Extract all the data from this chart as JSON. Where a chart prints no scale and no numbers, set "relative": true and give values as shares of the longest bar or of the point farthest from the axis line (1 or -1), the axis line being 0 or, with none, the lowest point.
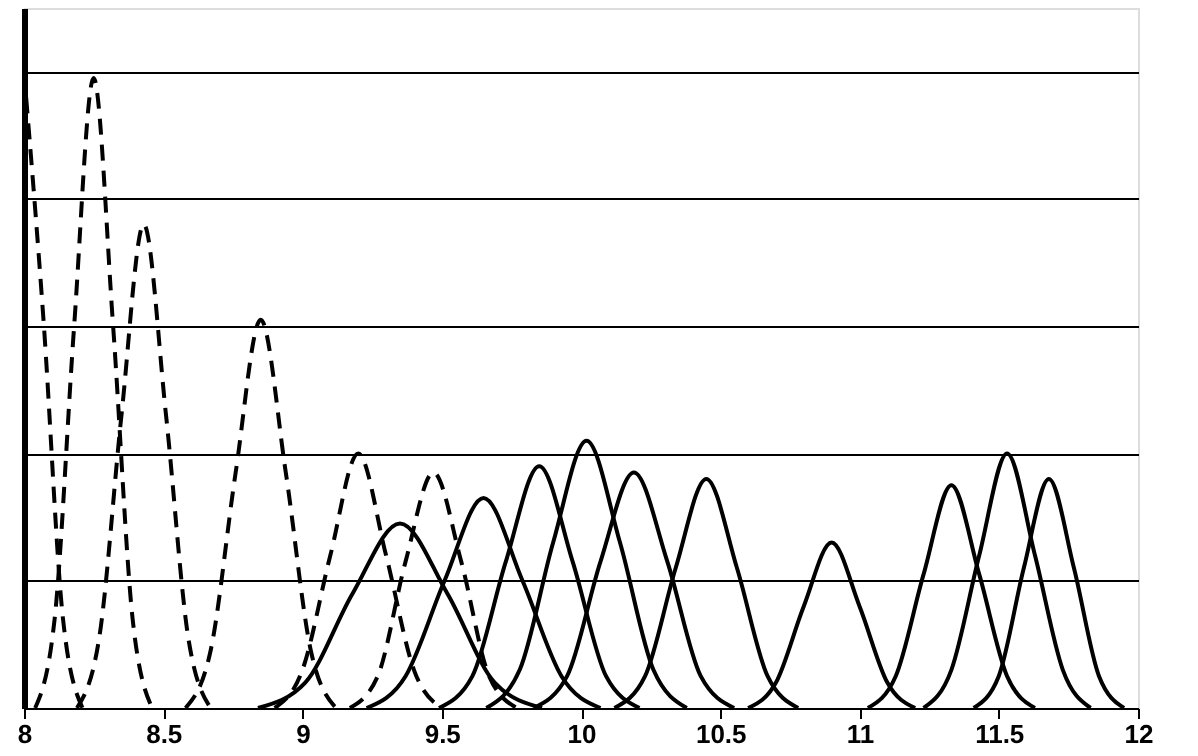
{
  "chart_data": {
    "type": "line",
    "relative": true,
    "xlim": [
      8,
      12
    ],
    "xticks": [
      8,
      8.5,
      9,
      9.5,
      10,
      10.5,
      11,
      11.5,
      12
    ],
    "grid": "y",
    "series": [
      {
        "color": "#000000",
        "line_style": "dashed",
        "x": [
          8.0,
          8.07,
          8.14,
          8.21
        ],
        "values": [
          1.0,
          0.61,
          0.14,
          0.0
        ]
      },
      {
        "color": "#000000",
        "line_style": "dashed",
        "x": [
          8.04,
          8.11,
          8.18,
          8.25,
          8.32,
          8.39,
          8.46
        ],
        "values": [
          0.0,
          0.14,
          0.6,
          0.99,
          0.6,
          0.14,
          0.0
        ]
      },
      {
        "color": "#000000",
        "line_style": "dashed",
        "x": [
          8.19,
          8.27,
          8.35,
          8.43,
          8.51,
          8.59,
          8.67
        ],
        "values": [
          0.0,
          0.11,
          0.46,
          0.76,
          0.46,
          0.11,
          0.0
        ]
      },
      {
        "color": "#000000",
        "line_style": "dashed",
        "x": [
          8.58,
          8.67,
          8.76,
          8.85,
          8.94,
          9.03,
          9.12
        ],
        "values": [
          0.0,
          0.09,
          0.37,
          0.61,
          0.37,
          0.09,
          0.0
        ]
      },
      {
        "color": "#000000",
        "line_style": "dashed",
        "x": [
          8.9,
          9.0,
          9.1,
          9.2,
          9.3,
          9.4,
          9.5
        ],
        "values": [
          0.0,
          0.06,
          0.24,
          0.4,
          0.24,
          0.06,
          0.0
        ]
      },
      {
        "color": "#000000",
        "line_style": "dashed",
        "x": [
          9.17,
          9.27,
          9.37,
          9.47,
          9.57,
          9.67,
          9.77
        ],
        "values": [
          0.0,
          0.05,
          0.23,
          0.37,
          0.23,
          0.05,
          0.0
        ]
      },
      {
        "color": "#000000",
        "line_style": "solid",
        "x": [
          8.84,
          9.01,
          9.18,
          9.35,
          9.52,
          9.69,
          9.86
        ],
        "values": [
          0.0,
          0.04,
          0.18,
          0.29,
          0.18,
          0.04,
          0.0
        ]
      },
      {
        "color": "#000000",
        "line_style": "solid",
        "x": [
          9.23,
          9.37,
          9.51,
          9.65,
          9.79,
          9.93,
          10.07
        ],
        "values": [
          0.0,
          0.05,
          0.2,
          0.33,
          0.2,
          0.05,
          0.0
        ]
      },
      {
        "color": "#000000",
        "line_style": "solid",
        "x": [
          9.49,
          9.61,
          9.73,
          9.85,
          9.97,
          10.09,
          10.21
        ],
        "values": [
          0.0,
          0.05,
          0.23,
          0.38,
          0.23,
          0.05,
          0.0
        ]
      },
      {
        "color": "#000000",
        "line_style": "solid",
        "x": [
          9.66,
          9.78,
          9.9,
          10.02,
          10.14,
          10.26,
          10.38
        ],
        "values": [
          0.0,
          0.06,
          0.26,
          0.42,
          0.26,
          0.06,
          0.0
        ]
      },
      {
        "color": "#000000",
        "line_style": "solid",
        "x": [
          9.83,
          9.95,
          10.07,
          10.19,
          10.31,
          10.43,
          10.55
        ],
        "values": [
          0.0,
          0.05,
          0.23,
          0.37,
          0.23,
          0.05,
          0.0
        ]
      },
      {
        "color": "#000000",
        "line_style": "solid",
        "x": [
          10.12,
          10.23,
          10.34,
          10.45,
          10.56,
          10.67,
          10.78
        ],
        "values": [
          0.0,
          0.05,
          0.22,
          0.36,
          0.22,
          0.05,
          0.0
        ]
      },
      {
        "color": "#000000",
        "line_style": "solid",
        "x": [
          10.6,
          10.7,
          10.8,
          10.9,
          11.0,
          11.1,
          11.2
        ],
        "values": [
          0.0,
          0.04,
          0.16,
          0.26,
          0.16,
          0.04,
          0.0
        ]
      },
      {
        "color": "#000000",
        "line_style": "solid",
        "x": [
          11.03,
          11.13,
          11.23,
          11.33,
          11.43,
          11.53,
          11.63
        ],
        "values": [
          0.0,
          0.05,
          0.21,
          0.35,
          0.21,
          0.05,
          0.0
        ]
      },
      {
        "color": "#000000",
        "line_style": "solid",
        "x": [
          11.23,
          11.33,
          11.43,
          11.53,
          11.63,
          11.73,
          11.83
        ],
        "values": [
          0.0,
          0.06,
          0.24,
          0.4,
          0.24,
          0.06,
          0.0
        ]
      },
      {
        "color": "#000000",
        "line_style": "solid",
        "x": [
          11.41,
          11.5,
          11.59,
          11.68,
          11.77,
          11.86,
          11.95
        ],
        "values": [
          0.0,
          0.05,
          0.22,
          0.36,
          0.22,
          0.05,
          0.0
        ]
      }
    ]
  }
}
